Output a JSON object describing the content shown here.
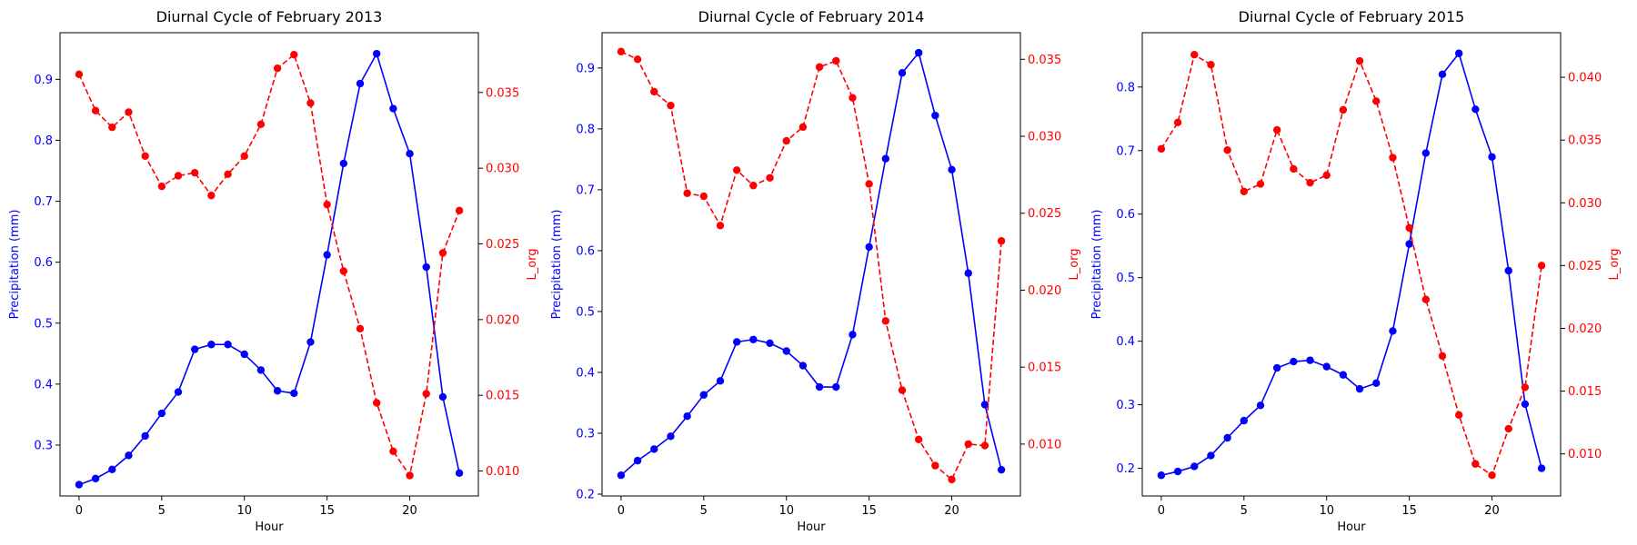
{
  "chart_data": [
    {
      "type": "line",
      "title": "Diurnal Cycle of February 2013",
      "xlabel": "Hour",
      "x": [
        0,
        1,
        2,
        3,
        4,
        5,
        6,
        7,
        8,
        9,
        10,
        11,
        12,
        13,
        14,
        15,
        16,
        17,
        18,
        19,
        20,
        21,
        22,
        23
      ],
      "xlim": [
        -1.15,
        24.15
      ],
      "xticks": [
        0,
        5,
        10,
        15,
        20
      ],
      "left_axis": {
        "label": "Precipitation (mm)",
        "color": "#0000ff",
        "ylim": [
          0.2165,
          0.9765
        ],
        "ticks": [
          0.3,
          0.4,
          0.5,
          0.6,
          0.7,
          0.8,
          0.9
        ]
      },
      "right_axis": {
        "label": "L_org",
        "color": "#ff0000",
        "ylim": [
          0.00835,
          0.03895
        ],
        "ticks": [
          0.01,
          0.015,
          0.02,
          0.025,
          0.03,
          0.035
        ]
      },
      "series": [
        {
          "axis": "left",
          "color": "#0000ff",
          "linestyle": "solid",
          "marker": "circle",
          "values": [
            0.235,
            0.245,
            0.26,
            0.283,
            0.315,
            0.352,
            0.387,
            0.457,
            0.465,
            0.465,
            0.449,
            0.423,
            0.389,
            0.385,
            0.469,
            0.612,
            0.762,
            0.893,
            0.942,
            0.852,
            0.778,
            0.592,
            0.379,
            0.254
          ]
        },
        {
          "axis": "right",
          "color": "#ff0000",
          "linestyle": "dashed",
          "marker": "circle",
          "values": [
            0.0362,
            0.0338,
            0.0327,
            0.0337,
            0.0308,
            0.0288,
            0.0295,
            0.0297,
            0.0282,
            0.0296,
            0.0308,
            0.0329,
            0.0366,
            0.0375,
            0.0343,
            0.0276,
            0.0232,
            0.0194,
            0.0145,
            0.0113,
            0.0097,
            0.0151,
            0.0244,
            0.0272
          ]
        }
      ]
    },
    {
      "type": "line",
      "title": "Diurnal Cycle of February 2014",
      "xlabel": "Hour",
      "x": [
        0,
        1,
        2,
        3,
        4,
        5,
        6,
        7,
        8,
        9,
        10,
        11,
        12,
        13,
        14,
        15,
        16,
        17,
        18,
        19,
        20,
        21,
        22,
        23
      ],
      "xlim": [
        -1.15,
        24.15
      ],
      "xticks": [
        0,
        5,
        10,
        15,
        20
      ],
      "left_axis": {
        "label": "Precipitation (mm)",
        "color": "#0000ff",
        "ylim": [
          0.197,
          0.958
        ],
        "ticks": [
          0.2,
          0.3,
          0.4,
          0.5,
          0.6,
          0.7,
          0.8,
          0.9
        ]
      },
      "right_axis": {
        "label": "L_org",
        "color": "#ff0000",
        "ylim": [
          0.00663,
          0.03673
        ],
        "ticks": [
          0.01,
          0.015,
          0.02,
          0.025,
          0.03,
          0.035
        ]
      },
      "series": [
        {
          "axis": "left",
          "color": "#0000ff",
          "linestyle": "solid",
          "marker": "circle",
          "values": [
            0.231,
            0.255,
            0.274,
            0.295,
            0.328,
            0.363,
            0.386,
            0.45,
            0.454,
            0.448,
            0.435,
            0.411,
            0.376,
            0.376,
            0.462,
            0.606,
            0.751,
            0.892,
            0.925,
            0.822,
            0.733,
            0.563,
            0.347,
            0.24
          ]
        },
        {
          "axis": "right",
          "color": "#ff0000",
          "linestyle": "dashed",
          "marker": "circle",
          "values": [
            0.0355,
            0.035,
            0.0329,
            0.032,
            0.0263,
            0.0261,
            0.0242,
            0.0278,
            0.0268,
            0.0273,
            0.0297,
            0.0306,
            0.0345,
            0.0349,
            0.0325,
            0.0269,
            0.018,
            0.0135,
            0.0103,
            0.0086,
            0.0077,
            0.01,
            0.0099,
            0.0232
          ]
        }
      ]
    },
    {
      "type": "line",
      "title": "Diurnal Cycle of February 2015",
      "xlabel": "Hour",
      "x": [
        0,
        1,
        2,
        3,
        4,
        5,
        6,
        7,
        8,
        9,
        10,
        11,
        12,
        13,
        14,
        15,
        16,
        17,
        18,
        19,
        20,
        21,
        22,
        23
      ],
      "xlim": [
        -1.15,
        24.15
      ],
      "xticks": [
        0,
        5,
        10,
        15,
        20
      ],
      "left_axis": {
        "label": "Precipitation (mm)",
        "color": "#0000ff",
        "ylim": [
          0.1565,
          0.8855
        ],
        "ticks": [
          0.2,
          0.3,
          0.4,
          0.5,
          0.6,
          0.7,
          0.8
        ]
      },
      "right_axis": {
        "label": "L_org",
        "color": "#ff0000",
        "ylim": [
          0.00665,
          0.04355
        ],
        "ticks": [
          0.01,
          0.015,
          0.02,
          0.025,
          0.03,
          0.035,
          0.04
        ]
      },
      "series": [
        {
          "axis": "left",
          "color": "#0000ff",
          "linestyle": "solid",
          "marker": "circle",
          "values": [
            0.189,
            0.195,
            0.203,
            0.22,
            0.248,
            0.275,
            0.299,
            0.358,
            0.368,
            0.37,
            0.36,
            0.347,
            0.325,
            0.334,
            0.416,
            0.553,
            0.696,
            0.82,
            0.853,
            0.765,
            0.69,
            0.511,
            0.301,
            0.2
          ]
        },
        {
          "axis": "right",
          "color": "#ff0000",
          "linestyle": "dashed",
          "marker": "circle",
          "values": [
            0.0343,
            0.0364,
            0.0418,
            0.041,
            0.0342,
            0.0309,
            0.0315,
            0.0358,
            0.0327,
            0.0316,
            0.0322,
            0.0374,
            0.0413,
            0.0381,
            0.0336,
            0.028,
            0.0223,
            0.0178,
            0.0131,
            0.0092,
            0.0083,
            0.012,
            0.0153,
            0.025
          ]
        }
      ]
    }
  ]
}
